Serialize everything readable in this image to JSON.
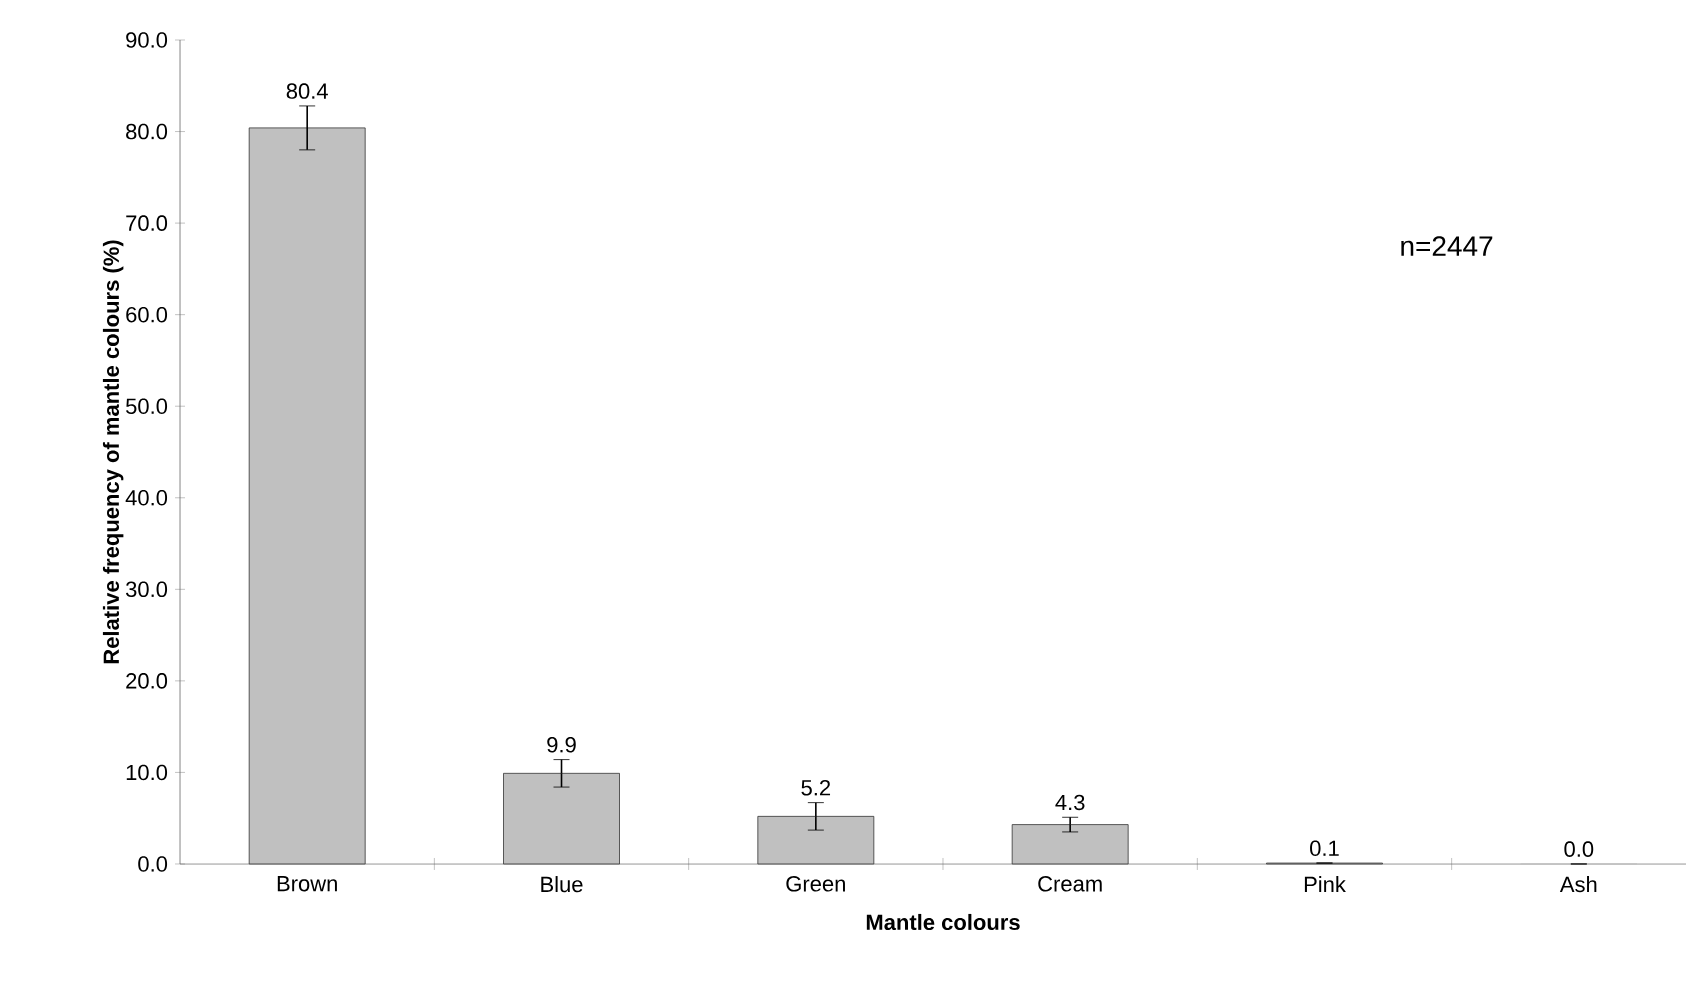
{
  "chart_data": {
    "type": "bar",
    "xlabel": "Mantle colours",
    "ylabel": "Relative frequency of mantle colours (%)",
    "categories": [
      "Brown",
      "Blue",
      "Green",
      "Cream",
      "Pink",
      "Ash"
    ],
    "values": [
      80.4,
      9.9,
      5.2,
      4.3,
      0.1,
      0.0
    ],
    "errors": [
      2.4,
      1.5,
      1.5,
      0.8,
      null,
      null
    ],
    "value_labels": [
      "80.4",
      "9.9",
      "5.2",
      "4.3",
      "0.1",
      "0.0"
    ],
    "color": "#c0c0c0",
    "ylim": [
      0,
      90
    ],
    "yticks": [
      {
        "value": 0,
        "label": "0.0"
      },
      {
        "value": 10,
        "label": "10.0"
      },
      {
        "value": 20,
        "label": "20.0"
      },
      {
        "value": 30,
        "label": "30.0"
      },
      {
        "value": 40,
        "label": "40.0"
      },
      {
        "value": 50,
        "label": "50.0"
      },
      {
        "value": 60,
        "label": "60.0"
      },
      {
        "value": 70,
        "label": "70.0"
      },
      {
        "value": 80,
        "label": "80.0"
      },
      {
        "value": 90,
        "label": "90.0"
      }
    ],
    "annotations": [
      "n=2447"
    ]
  }
}
